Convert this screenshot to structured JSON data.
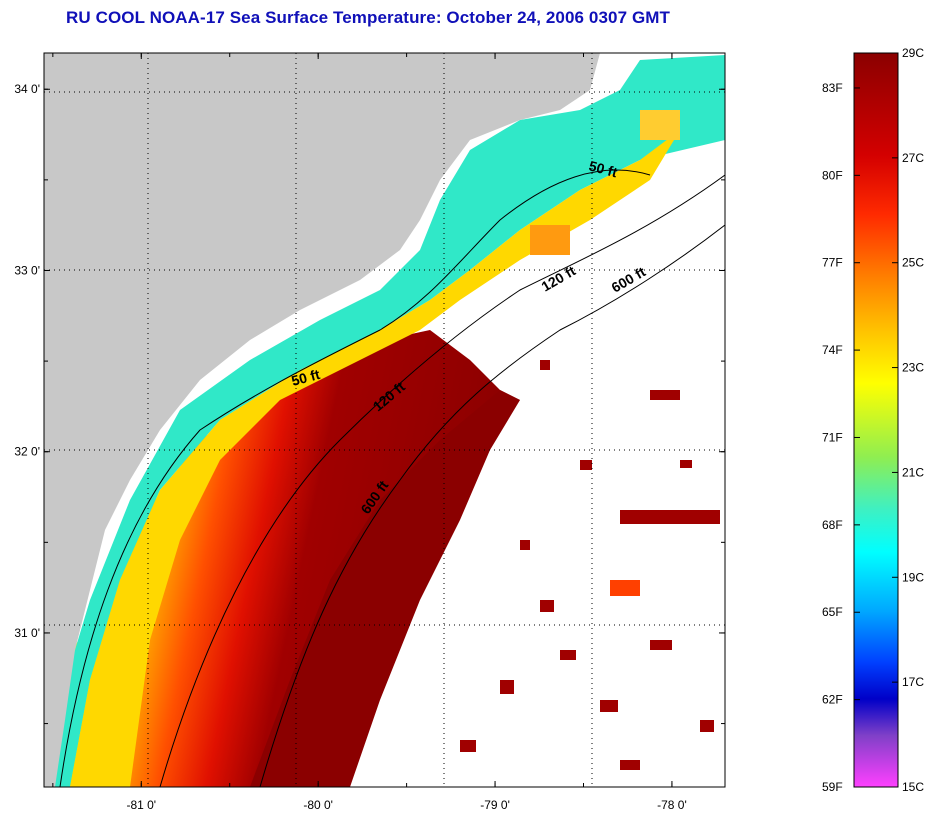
{
  "title": "RU COOL  NOAA-17  Sea Surface Temperature:  October 24, 2006 0307 GMT",
  "map": {
    "lon_ticks": [
      {
        "value": -81,
        "label": "-81 0'"
      },
      {
        "value": -80,
        "label": "-80 0'"
      },
      {
        "value": -79,
        "label": "-79 0'"
      },
      {
        "value": -78,
        "label": "-78 0'"
      }
    ],
    "lat_ticks": [
      {
        "value": 34,
        "label": "34 0'"
      },
      {
        "value": 33,
        "label": "33 0'"
      },
      {
        "value": 32,
        "label": "32 0'"
      },
      {
        "value": 31,
        "label": "31 0'"
      }
    ],
    "lon_range": [
      -81.55,
      -77.7
    ],
    "lat_range": [
      30.15,
      34.2
    ],
    "grid": true,
    "land_color": "#c8c8c8",
    "no_data_color": "#ffffff",
    "contours": [
      {
        "label": "50 ft",
        "depth_ft": 50
      },
      {
        "label": "120 ft",
        "depth_ft": 120
      },
      {
        "label": "600 ft",
        "depth_ft": 600
      }
    ]
  },
  "colorbar": {
    "units_c": "C",
    "units_f": "F",
    "range_c": [
      15,
      29
    ],
    "celsius_labels": [
      "29C",
      "27C",
      "25C",
      "23C",
      "21C",
      "19C",
      "17C",
      "15C"
    ],
    "fahrenheit_labels": [
      "83F",
      "80F",
      "77F",
      "74F",
      "71F",
      "68F",
      "65F",
      "62F",
      "59F"
    ],
    "colors": [
      "#8b0000",
      "#d40000",
      "#ff2a00",
      "#ff7a00",
      "#ffc400",
      "#ffff00",
      "#b0f040",
      "#40f0a0",
      "#00ffff",
      "#00a0ff",
      "#0040ff",
      "#0000c0",
      "#8040c0",
      "#ff40ff"
    ]
  }
}
